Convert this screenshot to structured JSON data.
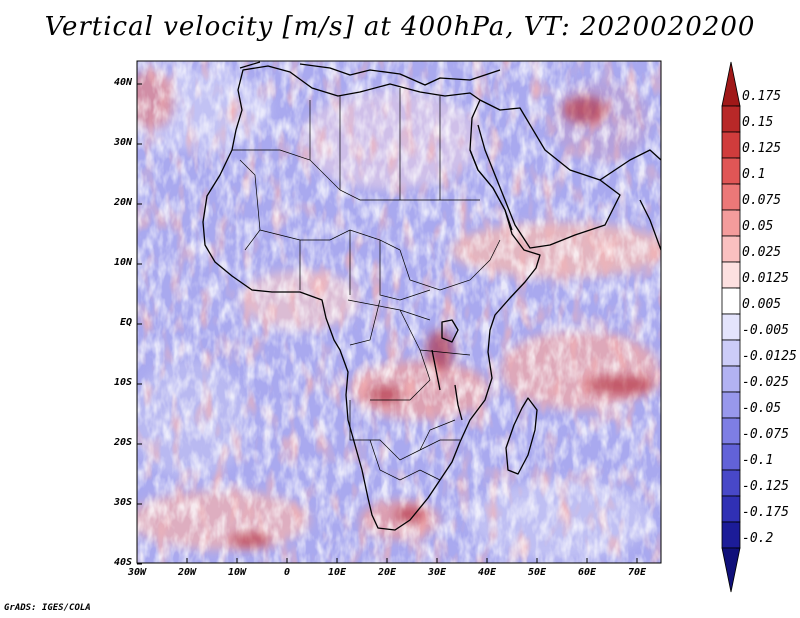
{
  "title": "Vertical velocity [m/s] at 400hPa, VT: 2020020200",
  "credit": "GrADS: IGES/COLA",
  "lat_ticks": [
    "40N",
    "30N",
    "20N",
    "10N",
    "EQ",
    "10S",
    "20S",
    "30S",
    "40S"
  ],
  "lon_ticks": [
    "30W",
    "20W",
    "10W",
    "0",
    "10E",
    "20E",
    "30E",
    "40E",
    "50E",
    "60E",
    "70E"
  ],
  "colorbar": {
    "labels": [
      "0.175",
      "0.15",
      "0.125",
      "0.1",
      "0.075",
      "0.05",
      "0.025",
      "0.0125",
      "0.005",
      "-0.005",
      "-0.0125",
      "-0.025",
      "-0.05",
      "-0.075",
      "-0.1",
      "-0.125",
      "-0.175",
      "-0.2"
    ],
    "colors": [
      "#a01818",
      "#b82828",
      "#d03c3c",
      "#e05656",
      "#ec7878",
      "#f49c9c",
      "#fac0c0",
      "#fde0e0",
      "#ffffff",
      "#e4e4fc",
      "#ccccf8",
      "#b2b2f2",
      "#9898ec",
      "#7e7ee4",
      "#6262d8",
      "#4848c8",
      "#3030b4",
      "#1c1c98",
      "#10107a"
    ]
  }
}
